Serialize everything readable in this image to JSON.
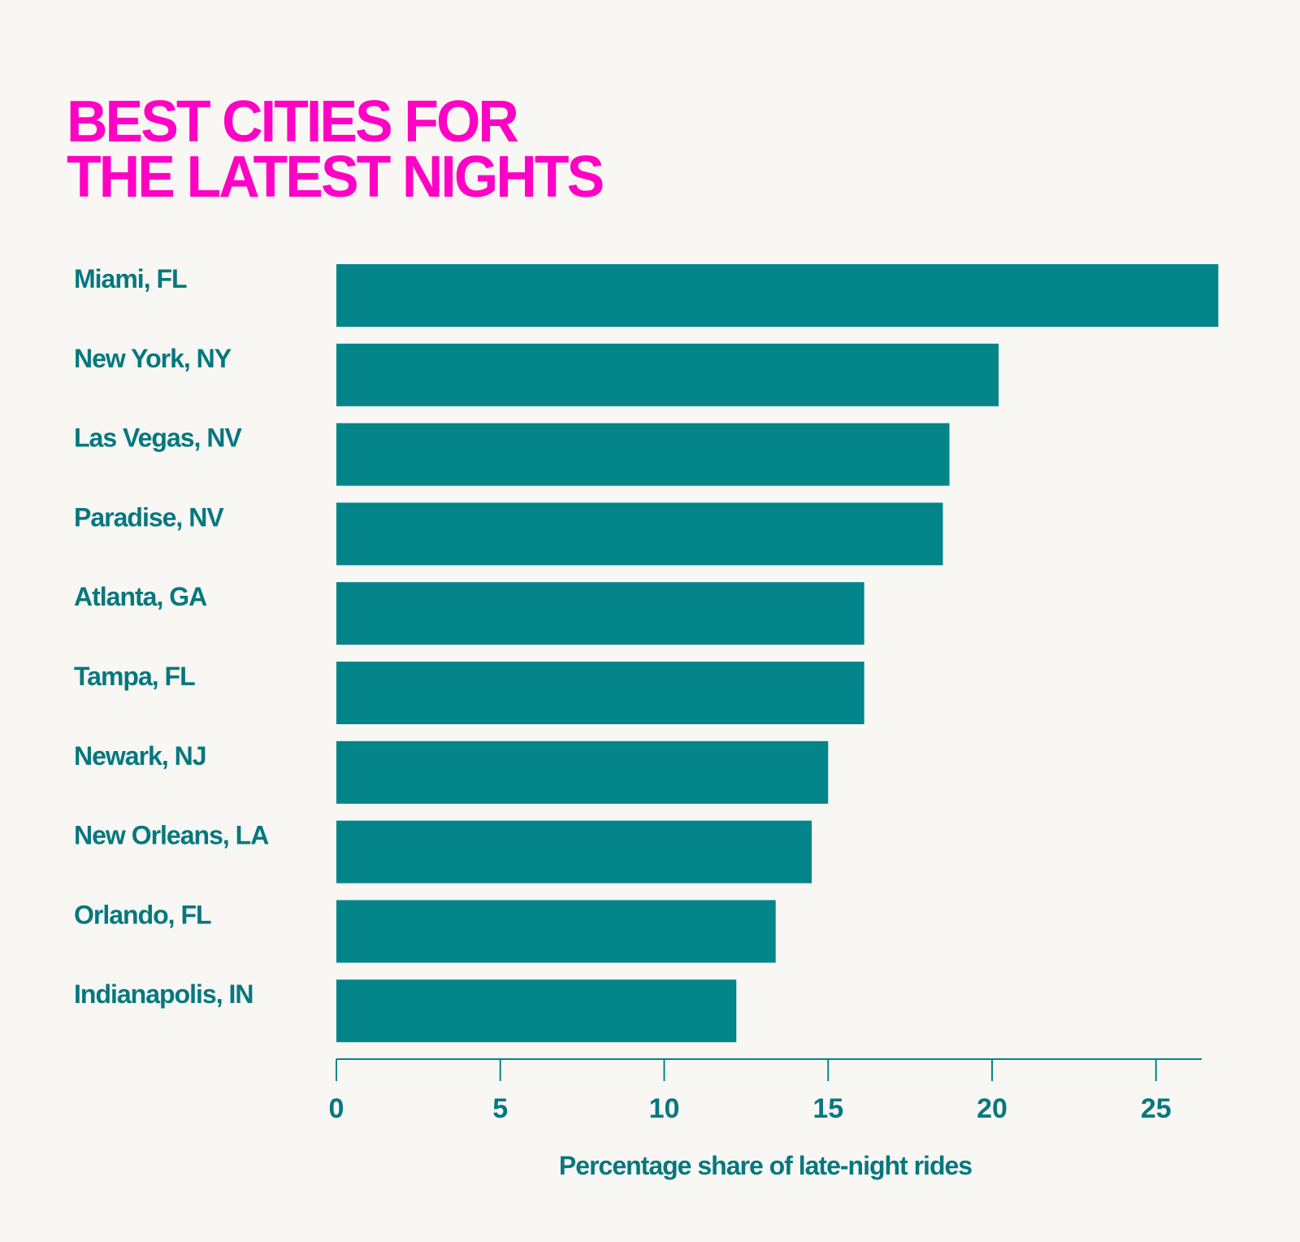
{
  "colors": {
    "background": "#f8f7f4",
    "title": "#ff00c4",
    "bar": "#03858a",
    "text": "#05787e"
  },
  "chart_data": {
    "type": "bar",
    "orientation": "horizontal",
    "title_lines": [
      "BEST CITIES FOR",
      "THE LATEST NIGHTS"
    ],
    "xlabel": "Percentage share of late-night rides",
    "ylabel": "",
    "xlim": [
      0,
      26.5
    ],
    "xticks": [
      0,
      5,
      10,
      15,
      20,
      25
    ],
    "grid": false,
    "categories": [
      "Miami, FL",
      "New York, NY",
      "Las Vegas, NV",
      "Paradise, NV",
      "Atlanta, GA",
      "Tampa, FL",
      "Newark, NJ",
      "New Orleans, LA",
      "Orlando, FL",
      "Indianapolis, IN"
    ],
    "values": [
      26.9,
      20.2,
      18.7,
      18.5,
      16.1,
      16.1,
      15.0,
      14.5,
      13.4,
      12.2
    ]
  }
}
